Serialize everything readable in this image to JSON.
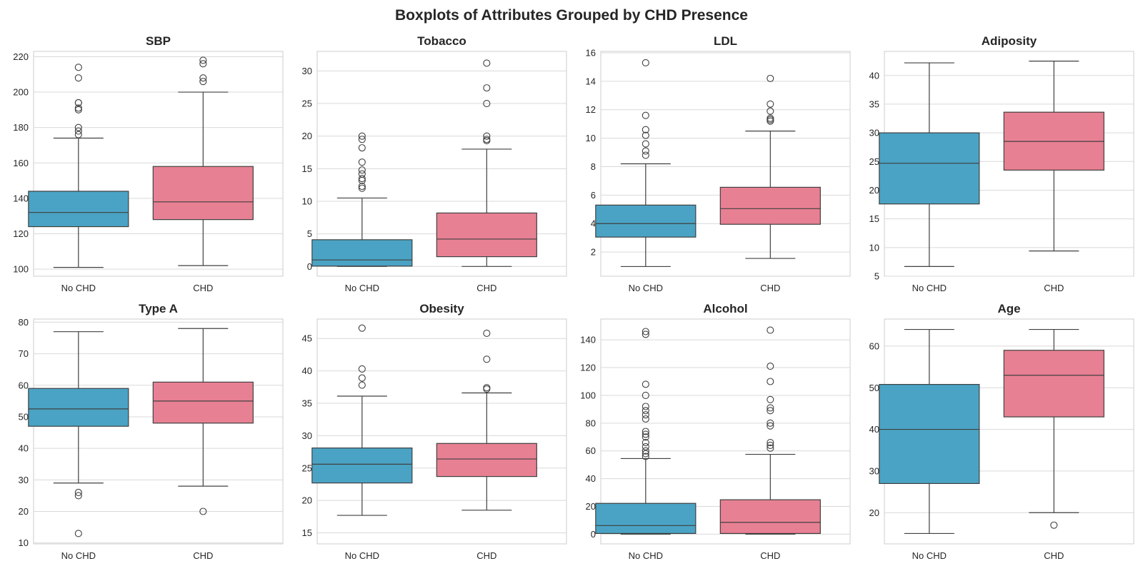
{
  "figure_title": "Boxplots of Attributes Grouped by CHD Presence",
  "colors": {
    "no_chd": "#4aa3c4",
    "chd": "#e88093",
    "grid": "#d9d9d9",
    "frame": "#cccccc",
    "line": "#404040",
    "text": "#262626"
  },
  "chart_data": [
    {
      "type": "boxplot",
      "title": "SBP",
      "categories": [
        "No CHD",
        "CHD"
      ],
      "ylim": [
        96,
        223
      ],
      "yticks": [
        100,
        120,
        140,
        160,
        180,
        200,
        220
      ],
      "grid": true,
      "boxes": [
        {
          "whisker_low": 101,
          "q1": 124,
          "median": 132,
          "q3": 144,
          "whisker_high": 174,
          "outliers": [
            176,
            178,
            180,
            190,
            191,
            194,
            194,
            208,
            214
          ]
        },
        {
          "whisker_low": 102,
          "q1": 128,
          "median": 138,
          "q3": 158,
          "whisker_high": 200,
          "outliers": [
            206,
            208,
            216,
            218
          ]
        }
      ]
    },
    {
      "type": "boxplot",
      "title": "Tobacco",
      "categories": [
        "No CHD",
        "CHD"
      ],
      "ylim": [
        -1.5,
        33
      ],
      "yticks": [
        0,
        5,
        10,
        15,
        20,
        25,
        30
      ],
      "grid": true,
      "boxes": [
        {
          "whisker_low": 0,
          "q1": 0.05,
          "median": 1.0,
          "q3": 4.1,
          "whisker_high": 10.5,
          "outliers": [
            12.0,
            12.3,
            13.2,
            13.5,
            14.2,
            14.8,
            16.0,
            18.2,
            19.5,
            20.0
          ]
        },
        {
          "whisker_low": 0,
          "q1": 1.5,
          "median": 4.2,
          "q3": 8.2,
          "whisker_high": 18.0,
          "outliers": [
            19.3,
            19.5,
            20.0,
            25.0,
            27.4,
            31.2
          ]
        }
      ]
    },
    {
      "type": "boxplot",
      "title": "LDL",
      "categories": [
        "No CHD",
        "CHD"
      ],
      "ylim": [
        0.3,
        16.1
      ],
      "yticks": [
        2,
        4,
        6,
        8,
        10,
        12,
        14,
        16
      ],
      "grid": true,
      "boxes": [
        {
          "whisker_low": 0.98,
          "q1": 3.05,
          "median": 4.0,
          "q3": 5.3,
          "whisker_high": 8.2,
          "outliers": [
            8.8,
            9.1,
            9.6,
            10.2,
            10.6,
            11.6,
            15.3
          ]
        },
        {
          "whisker_low": 1.55,
          "q1": 3.95,
          "median": 5.05,
          "q3": 6.55,
          "whisker_high": 10.5,
          "outliers": [
            11.2,
            11.3,
            11.4,
            11.9,
            12.4,
            14.2
          ]
        }
      ]
    },
    {
      "type": "boxplot",
      "title": "Adiposity",
      "categories": [
        "No CHD",
        "CHD"
      ],
      "ylim": [
        5,
        44.2
      ],
      "yticks": [
        5,
        10,
        15,
        20,
        25,
        30,
        35,
        40
      ],
      "grid": true,
      "boxes": [
        {
          "whisker_low": 6.7,
          "q1": 17.6,
          "median": 24.7,
          "q3": 30.0,
          "whisker_high": 42.2,
          "outliers": []
        },
        {
          "whisker_low": 9.4,
          "q1": 23.5,
          "median": 28.5,
          "q3": 33.6,
          "whisker_high": 42.5,
          "outliers": []
        }
      ]
    },
    {
      "type": "boxplot",
      "title": "Type A",
      "categories": [
        "No CHD",
        "CHD"
      ],
      "ylim": [
        9.7,
        81
      ],
      "yticks": [
        10,
        20,
        30,
        40,
        50,
        60,
        70,
        80
      ],
      "grid": true,
      "boxes": [
        {
          "whisker_low": 29,
          "q1": 47,
          "median": 52.5,
          "q3": 59,
          "whisker_high": 77,
          "outliers": [
            13,
            25,
            26
          ]
        },
        {
          "whisker_low": 28,
          "q1": 48,
          "median": 55,
          "q3": 61,
          "whisker_high": 78,
          "outliers": [
            20
          ]
        }
      ]
    },
    {
      "type": "boxplot",
      "title": "Obesity",
      "categories": [
        "No CHD",
        "CHD"
      ],
      "ylim": [
        13.3,
        48
      ],
      "yticks": [
        15,
        20,
        25,
        30,
        35,
        40,
        45
      ],
      "grid": true,
      "boxes": [
        {
          "whisker_low": 17.7,
          "q1": 22.7,
          "median": 25.6,
          "q3": 28.1,
          "whisker_high": 36.1,
          "outliers": [
            37.8,
            38.9,
            40.3,
            46.6
          ]
        },
        {
          "whisker_low": 18.5,
          "q1": 23.7,
          "median": 26.4,
          "q3": 28.8,
          "whisker_high": 36.6,
          "outliers": [
            37.2,
            37.4,
            41.8,
            45.8
          ]
        }
      ]
    },
    {
      "type": "boxplot",
      "title": "Alcohol",
      "categories": [
        "No CHD",
        "CHD"
      ],
      "ylim": [
        -7,
        155
      ],
      "yticks": [
        0,
        20,
        40,
        60,
        80,
        100,
        120,
        140
      ],
      "grid": true,
      "boxes": [
        {
          "whisker_low": 0,
          "q1": 0.5,
          "median": 6.2,
          "q3": 22.2,
          "whisker_high": 54.5,
          "outliers": [
            56,
            58,
            60,
            63,
            66,
            70,
            72,
            74,
            83,
            86,
            89,
            92,
            100,
            108,
            144,
            146
          ]
        },
        {
          "whisker_low": 0,
          "q1": 0.5,
          "median": 8.5,
          "q3": 24.8,
          "whisker_high": 57.5,
          "outliers": [
            62,
            64,
            66,
            78,
            80,
            89,
            91,
            97,
            110,
            121,
            147
          ]
        }
      ]
    },
    {
      "type": "boxplot",
      "title": "Age",
      "categories": [
        "No CHD",
        "CHD"
      ],
      "ylim": [
        12.5,
        66.5
      ],
      "yticks": [
        20,
        30,
        40,
        50,
        60
      ],
      "grid": true,
      "boxes": [
        {
          "whisker_low": 15,
          "q1": 27,
          "median": 40,
          "q3": 50.8,
          "whisker_high": 64,
          "outliers": []
        },
        {
          "whisker_low": 20,
          "q1": 43,
          "median": 53,
          "q3": 59,
          "whisker_high": 64,
          "outliers": [
            17
          ]
        }
      ]
    }
  ]
}
